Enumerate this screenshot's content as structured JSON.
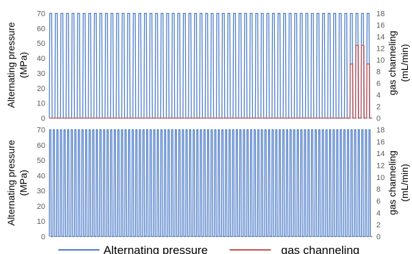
{
  "chart_data": [
    {
      "type": "line",
      "title": "",
      "ylabel_left": [
        "Alternating pressure",
        "(MPa)"
      ],
      "ylabel_right": [
        "gas channeling",
        "(mL/min)"
      ],
      "ylim_left": [
        0,
        70
      ],
      "yticks_left": [
        "0",
        "10",
        "20",
        "30",
        "40",
        "50",
        "60",
        "70"
      ],
      "ylim_right": [
        0,
        18
      ],
      "yticks_right": [
        "0",
        "2",
        "4",
        "6",
        "8",
        "10",
        "12",
        "14",
        "16",
        "18"
      ],
      "grid": false,
      "series": [
        {
          "name": "Alternating pressure",
          "axis": "left",
          "color": "#4a7ac7",
          "cycles": 58,
          "min": 0,
          "max": 70
        },
        {
          "name": "gas channeling",
          "axis": "right",
          "color": "#c0504d",
          "baseline": 0,
          "events": [
            {
              "cycle": 54,
              "value": 9.3
            },
            {
              "cycle": 55,
              "value": 12.5
            },
            {
              "cycle": 56,
              "value": 12.5
            },
            {
              "cycle": 57,
              "value": 9.3
            }
          ]
        }
      ]
    },
    {
      "type": "line",
      "title": "",
      "ylabel_left": [
        "Alternating pressure",
        "(MPa)"
      ],
      "ylabel_right": [
        "gas channeling",
        "(mL/min)"
      ],
      "ylim_left": [
        0,
        70
      ],
      "yticks_left": [
        "0",
        "10",
        "20",
        "30",
        "40",
        "50",
        "60",
        "70"
      ],
      "ylim_right": [
        0,
        18
      ],
      "yticks_right": [
        "0",
        "2",
        "4",
        "6",
        "8",
        "10",
        "12",
        "14",
        "16",
        "18"
      ],
      "grid": false,
      "series": [
        {
          "name": "Alternating pressure",
          "axis": "left",
          "color": "#4a7ac7",
          "cycles": 90,
          "min": 0,
          "max": 70
        }
      ]
    }
  ],
  "legend": {
    "placement": "bottom",
    "entries": [
      {
        "label": "Alternating pressure",
        "color": "#4a7ac7"
      },
      {
        "label": "gas channeling",
        "color": "#c0504d"
      }
    ]
  }
}
